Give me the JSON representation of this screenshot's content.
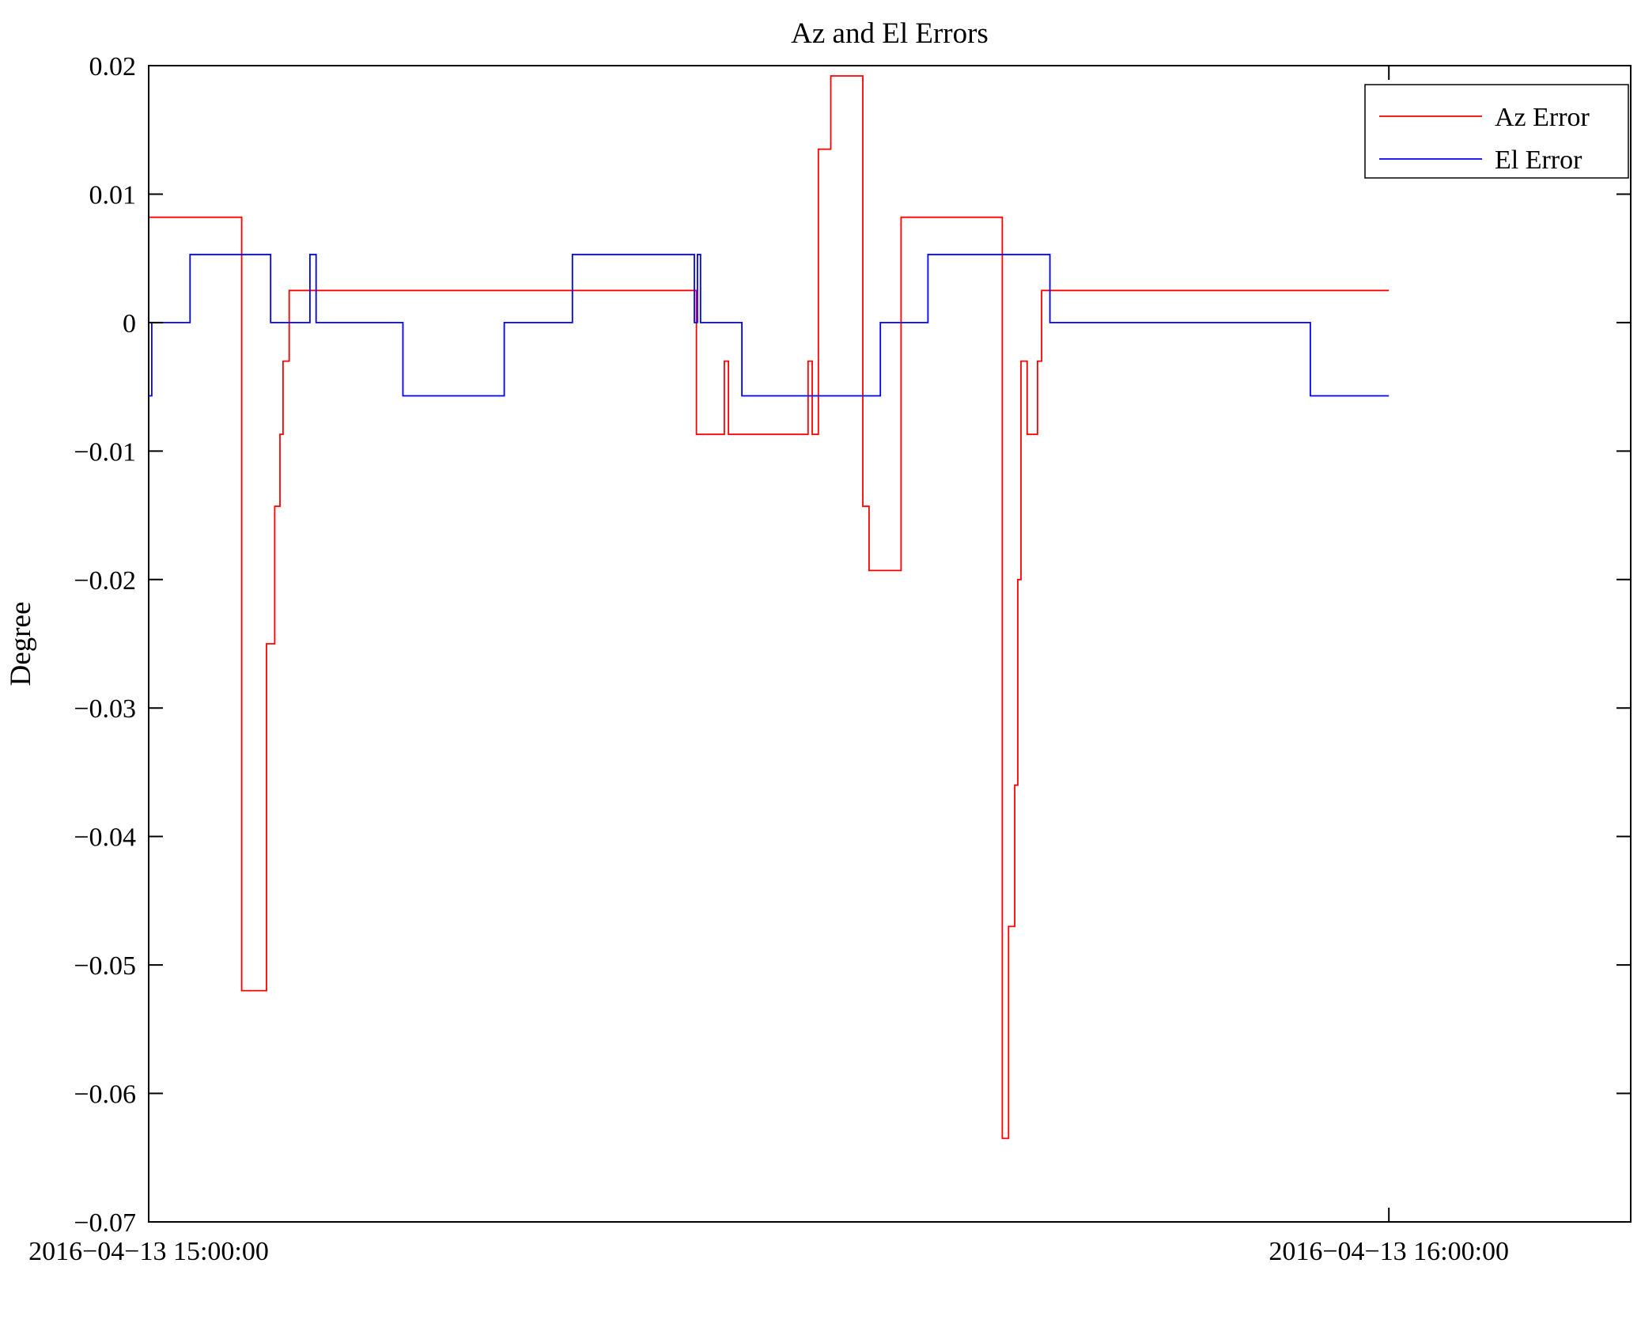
{
  "figure": {
    "background": "#ffffff",
    "axis_color": "#000000"
  },
  "chart_data": {
    "type": "line",
    "title": "Az and El Errors",
    "xlabel": "",
    "ylabel": "Degree",
    "grid": false,
    "line_style": "step",
    "x_axis": {
      "unit": "minutes after 2016-04-13 15:00:00",
      "range": [
        0,
        71.7
      ],
      "ticks": [
        {
          "t": 0,
          "label": "2016−04−13 15:00:00"
        },
        {
          "t": 60,
          "label": "2016−04−13 16:00:00"
        }
      ]
    },
    "y_axis": {
      "range": [
        -0.07,
        0.02
      ],
      "ticks": [
        {
          "v": 0.02,
          "label": "0.02"
        },
        {
          "v": 0.01,
          "label": "0.01"
        },
        {
          "v": 0,
          "label": "0"
        },
        {
          "v": -0.01,
          "label": "−0.01"
        },
        {
          "v": -0.02,
          "label": "−0.02"
        },
        {
          "v": -0.03,
          "label": "−0.03"
        },
        {
          "v": -0.04,
          "label": "−0.04"
        },
        {
          "v": -0.05,
          "label": "−0.05"
        },
        {
          "v": -0.06,
          "label": "−0.06"
        },
        {
          "v": -0.07,
          "label": "−0.07"
        }
      ]
    },
    "legend": {
      "position": "top-right",
      "entries": [
        "Az Error",
        "El Error"
      ],
      "border_color": "#000000",
      "fill": "#ffffff"
    },
    "series": [
      {
        "name": "Az Error",
        "color": "#ff0000",
        "points": [
          [
            0,
            0.0082
          ],
          [
            4.5,
            0.0082
          ],
          [
            4.5,
            -0.052
          ],
          [
            5.7,
            -0.052
          ],
          [
            5.7,
            -0.025
          ],
          [
            6.1,
            -0.025
          ],
          [
            6.1,
            -0.0143
          ],
          [
            6.35,
            -0.0143
          ],
          [
            6.35,
            -0.0087
          ],
          [
            6.5,
            -0.0087
          ],
          [
            6.5,
            -0.003
          ],
          [
            6.8,
            -0.003
          ],
          [
            6.8,
            0.0025
          ],
          [
            26.5,
            0.0025
          ],
          [
            26.5,
            -0.0087
          ],
          [
            27.85,
            -0.0087
          ],
          [
            27.85,
            -0.003
          ],
          [
            28.05,
            -0.003
          ],
          [
            28.05,
            -0.0087
          ],
          [
            31.9,
            -0.0087
          ],
          [
            31.9,
            -0.003
          ],
          [
            32.1,
            -0.003
          ],
          [
            32.1,
            -0.0087
          ],
          [
            32.4,
            -0.0087
          ],
          [
            32.4,
            0.0135
          ],
          [
            33.0,
            0.0135
          ],
          [
            33.0,
            0.0192
          ],
          [
            34.55,
            0.0192
          ],
          [
            34.55,
            -0.0143
          ],
          [
            34.85,
            -0.0143
          ],
          [
            34.85,
            -0.0193
          ],
          [
            36.4,
            -0.0193
          ],
          [
            36.4,
            0.0082
          ],
          [
            41.3,
            0.0082
          ],
          [
            41.3,
            -0.0635
          ],
          [
            41.6,
            -0.0635
          ],
          [
            41.6,
            -0.047
          ],
          [
            41.9,
            -0.047
          ],
          [
            41.9,
            -0.036
          ],
          [
            42.05,
            -0.036
          ],
          [
            42.05,
            -0.02
          ],
          [
            42.2,
            -0.02
          ],
          [
            42.2,
            -0.003
          ],
          [
            42.5,
            -0.003
          ],
          [
            42.5,
            -0.0087
          ],
          [
            43.0,
            -0.0087
          ],
          [
            43.0,
            -0.003
          ],
          [
            43.2,
            -0.003
          ],
          [
            43.2,
            0.0025
          ],
          [
            60.0,
            0.0025
          ]
        ]
      },
      {
        "name": "El Error",
        "color": "#0000ff",
        "points": [
          [
            0,
            -0.0057
          ],
          [
            0.15,
            -0.0057
          ],
          [
            0.15,
            0
          ],
          [
            2.0,
            0
          ],
          [
            2.0,
            0.0053
          ],
          [
            5.9,
            0.0053
          ],
          [
            5.9,
            0
          ],
          [
            7.8,
            0
          ],
          [
            7.8,
            0.0053
          ],
          [
            8.1,
            0.0053
          ],
          [
            8.1,
            0
          ],
          [
            12.3,
            0
          ],
          [
            12.3,
            -0.0057
          ],
          [
            17.2,
            -0.0057
          ],
          [
            17.2,
            0
          ],
          [
            20.5,
            0
          ],
          [
            20.5,
            0.0053
          ],
          [
            26.4,
            0.0053
          ],
          [
            26.4,
            0
          ],
          [
            26.55,
            0
          ],
          [
            26.55,
            0.0053
          ],
          [
            26.7,
            0.0053
          ],
          [
            26.7,
            0
          ],
          [
            28.7,
            0
          ],
          [
            28.7,
            -0.0057
          ],
          [
            35.4,
            -0.0057
          ],
          [
            35.4,
            0
          ],
          [
            37.7,
            0
          ],
          [
            37.7,
            0.0053
          ],
          [
            43.6,
            0.0053
          ],
          [
            43.6,
            0
          ],
          [
            56.2,
            0
          ],
          [
            56.2,
            -0.0057
          ],
          [
            60.0,
            -0.0057
          ]
        ]
      }
    ]
  }
}
